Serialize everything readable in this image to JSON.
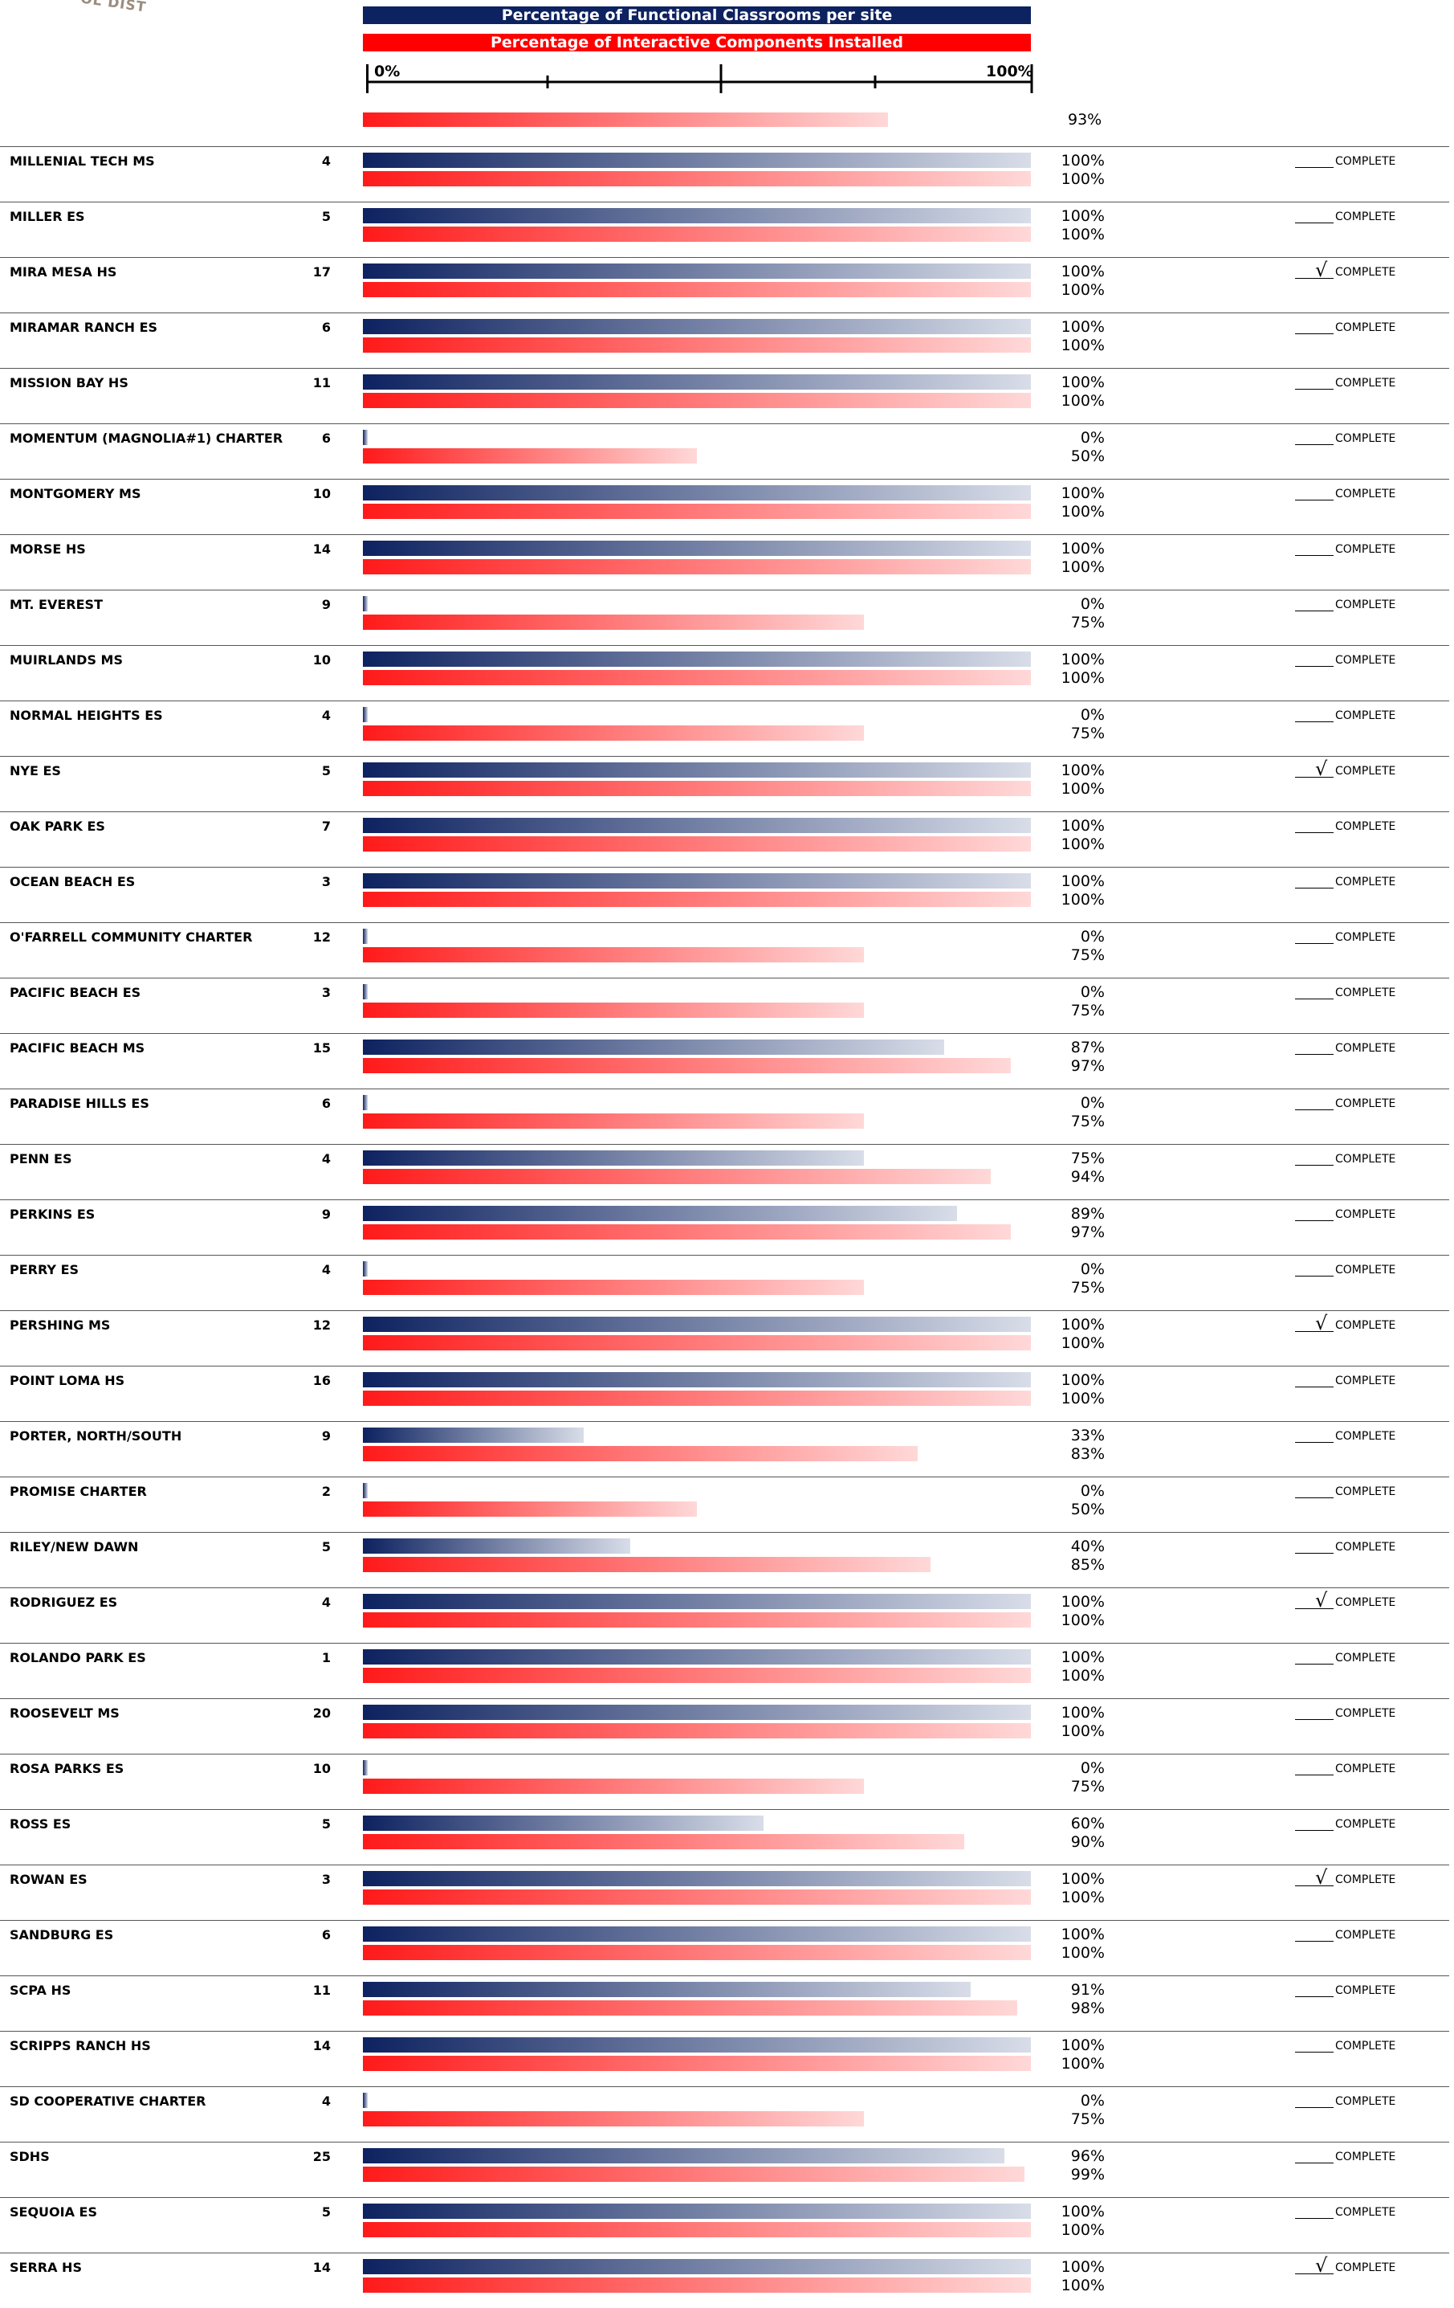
{
  "logo_fragment": "OL DIST",
  "legend": {
    "functional": "Percentage of Functional Classrooms per site",
    "interactive": "Percentage of Interactive Components Installed"
  },
  "scale": {
    "min_label": "0%",
    "max_label": "100%"
  },
  "summary": {
    "value": 93,
    "label": "93%"
  },
  "colors": {
    "functional_bar": "#0d2260",
    "interactive_bar": "#ff0000",
    "legend_text": "#ffffff"
  },
  "complete_label": "COMPLETE",
  "chart_data": {
    "type": "bar",
    "title": "",
    "orientation": "horizontal",
    "xlim": [
      0,
      100
    ],
    "series": [
      {
        "name": "Percentage of Functional Classrooms per site",
        "color": "#0d2260",
        "values": [
          100,
          100,
          100,
          100,
          100,
          0,
          100,
          100,
          0,
          100,
          0,
          100,
          100,
          100,
          0,
          0,
          87,
          0,
          75,
          89,
          0,
          100,
          100,
          33,
          0,
          40,
          100,
          100,
          100,
          0,
          60,
          100,
          100,
          91,
          100,
          0,
          96,
          100,
          100
        ]
      },
      {
        "name": "Percentage of Interactive Components Installed",
        "color": "#ff0000",
        "values": [
          100,
          100,
          100,
          100,
          100,
          50,
          100,
          100,
          75,
          100,
          75,
          100,
          100,
          100,
          75,
          75,
          97,
          75,
          94,
          97,
          75,
          100,
          100,
          83,
          50,
          85,
          100,
          100,
          100,
          75,
          90,
          100,
          100,
          98,
          100,
          75,
          99,
          100,
          100
        ]
      }
    ],
    "rows": [
      {
        "name": "MILLENIAL TECH MS",
        "count": "4",
        "functional": 100,
        "interactive": 100,
        "functional_label": "100%",
        "interactive_label": "100%",
        "complete": false
      },
      {
        "name": "MILLER ES",
        "count": "5",
        "functional": 100,
        "interactive": 100,
        "functional_label": "100%",
        "interactive_label": "100%",
        "complete": false
      },
      {
        "name": "MIRA MESA HS",
        "count": "17",
        "functional": 100,
        "interactive": 100,
        "functional_label": "100%",
        "interactive_label": "100%",
        "complete": true
      },
      {
        "name": "MIRAMAR RANCH ES",
        "count": "6",
        "functional": 100,
        "interactive": 100,
        "functional_label": "100%",
        "interactive_label": "100%",
        "complete": false
      },
      {
        "name": "MISSION BAY HS",
        "count": "11",
        "functional": 100,
        "interactive": 100,
        "functional_label": "100%",
        "interactive_label": "100%",
        "complete": false
      },
      {
        "name": "MOMENTUM (MAGNOLIA#1) CHARTER",
        "count": "6",
        "functional": 0,
        "interactive": 50,
        "functional_label": "0%",
        "interactive_label": "50%",
        "complete": false
      },
      {
        "name": "MONTGOMERY MS",
        "count": "10",
        "functional": 100,
        "interactive": 100,
        "functional_label": "100%",
        "interactive_label": "100%",
        "complete": false
      },
      {
        "name": "MORSE HS",
        "count": "14",
        "functional": 100,
        "interactive": 100,
        "functional_label": "100%",
        "interactive_label": "100%",
        "complete": false
      },
      {
        "name": "MT. EVEREST",
        "count": "9",
        "functional": 0,
        "interactive": 75,
        "functional_label": "0%",
        "interactive_label": "75%",
        "complete": false
      },
      {
        "name": "MUIRLANDS MS",
        "count": "10",
        "functional": 100,
        "interactive": 100,
        "functional_label": "100%",
        "interactive_label": "100%",
        "complete": false
      },
      {
        "name": "NORMAL HEIGHTS ES",
        "count": "4",
        "functional": 0,
        "interactive": 75,
        "functional_label": "0%",
        "interactive_label": "75%",
        "complete": false
      },
      {
        "name": "NYE ES",
        "count": "5",
        "functional": 100,
        "interactive": 100,
        "functional_label": "100%",
        "interactive_label": "100%",
        "complete": true
      },
      {
        "name": "OAK PARK ES",
        "count": "7",
        "functional": 100,
        "interactive": 100,
        "functional_label": "100%",
        "interactive_label": "100%",
        "complete": false
      },
      {
        "name": "OCEAN BEACH ES",
        "count": "3",
        "functional": 100,
        "interactive": 100,
        "functional_label": "100%",
        "interactive_label": "100%",
        "complete": false
      },
      {
        "name": "O'FARRELL COMMUNITY CHARTER",
        "count": "12",
        "functional": 0,
        "interactive": 75,
        "functional_label": "0%",
        "interactive_label": "75%",
        "complete": false
      },
      {
        "name": "PACIFIC BEACH ES",
        "count": "3",
        "functional": 0,
        "interactive": 75,
        "functional_label": "0%",
        "interactive_label": "75%",
        "complete": false
      },
      {
        "name": "PACIFIC BEACH MS",
        "count": "15",
        "functional": 87,
        "interactive": 97,
        "functional_label": "87%",
        "interactive_label": "97%",
        "complete": false
      },
      {
        "name": "PARADISE HILLS ES",
        "count": "6",
        "functional": 0,
        "interactive": 75,
        "functional_label": "0%",
        "interactive_label": "75%",
        "complete": false
      },
      {
        "name": "PENN ES",
        "count": "4",
        "functional": 75,
        "interactive": 94,
        "functional_label": "75%",
        "interactive_label": "94%",
        "complete": false
      },
      {
        "name": "PERKINS ES",
        "count": "9",
        "functional": 89,
        "interactive": 97,
        "functional_label": "89%",
        "interactive_label": "97%",
        "complete": false
      },
      {
        "name": "PERRY ES",
        "count": "4",
        "functional": 0,
        "interactive": 75,
        "functional_label": "0%",
        "interactive_label": "75%",
        "complete": false
      },
      {
        "name": "PERSHING MS",
        "count": "12",
        "functional": 100,
        "interactive": 100,
        "functional_label": "100%",
        "interactive_label": "100%",
        "complete": true
      },
      {
        "name": "POINT LOMA HS",
        "count": "16",
        "functional": 100,
        "interactive": 100,
        "functional_label": "100%",
        "interactive_label": "100%",
        "complete": false
      },
      {
        "name": "PORTER, NORTH/SOUTH",
        "count": "9",
        "functional": 33,
        "interactive": 83,
        "functional_label": "33%",
        "interactive_label": "83%",
        "complete": false
      },
      {
        "name": "PROMISE CHARTER",
        "count": "2",
        "functional": 0,
        "interactive": 50,
        "functional_label": "0%",
        "interactive_label": "50%",
        "complete": false
      },
      {
        "name": "RILEY/NEW DAWN",
        "count": "5",
        "functional": 40,
        "interactive": 85,
        "functional_label": "40%",
        "interactive_label": "85%",
        "complete": false
      },
      {
        "name": "RODRIGUEZ ES",
        "count": "4",
        "functional": 100,
        "interactive": 100,
        "functional_label": "100%",
        "interactive_label": "100%",
        "complete": true
      },
      {
        "name": "ROLANDO PARK ES",
        "count": "1",
        "functional": 100,
        "interactive": 100,
        "functional_label": "100%",
        "interactive_label": "100%",
        "complete": false
      },
      {
        "name": "ROOSEVELT MS",
        "count": "20",
        "functional": 100,
        "interactive": 100,
        "functional_label": "100%",
        "interactive_label": "100%",
        "complete": false
      },
      {
        "name": "ROSA PARKS ES",
        "count": "10",
        "functional": 0,
        "interactive": 75,
        "functional_label": "0%",
        "interactive_label": "75%",
        "complete": false
      },
      {
        "name": "ROSS ES",
        "count": "5",
        "functional": 60,
        "interactive": 90,
        "functional_label": "60%",
        "interactive_label": "90%",
        "complete": false
      },
      {
        "name": "ROWAN ES",
        "count": "3",
        "functional": 100,
        "interactive": 100,
        "functional_label": "100%",
        "interactive_label": "100%",
        "complete": true
      },
      {
        "name": "SANDBURG ES",
        "count": "6",
        "functional": 100,
        "interactive": 100,
        "functional_label": "100%",
        "interactive_label": "100%",
        "complete": false
      },
      {
        "name": "SCPA HS",
        "count": "11",
        "functional": 91,
        "interactive": 98,
        "functional_label": "91%",
        "interactive_label": "98%",
        "complete": false
      },
      {
        "name": "SCRIPPS RANCH HS",
        "count": "14",
        "functional": 100,
        "interactive": 100,
        "functional_label": "100%",
        "interactive_label": "100%",
        "complete": false
      },
      {
        "name": "SD COOPERATIVE CHARTER",
        "count": "4",
        "functional": 0,
        "interactive": 75,
        "functional_label": "0%",
        "interactive_label": "75%",
        "complete": false
      },
      {
        "name": "SDHS",
        "count": "25",
        "functional": 96,
        "interactive": 99,
        "functional_label": "96%",
        "interactive_label": "99%",
        "complete": false
      },
      {
        "name": "SEQUOIA ES",
        "count": "5",
        "functional": 100,
        "interactive": 100,
        "functional_label": "100%",
        "interactive_label": "100%",
        "complete": false
      },
      {
        "name": "SERRA HS",
        "count": "14",
        "functional": 100,
        "interactive": 100,
        "functional_label": "100%",
        "interactive_label": "100%",
        "complete": true
      }
    ]
  }
}
